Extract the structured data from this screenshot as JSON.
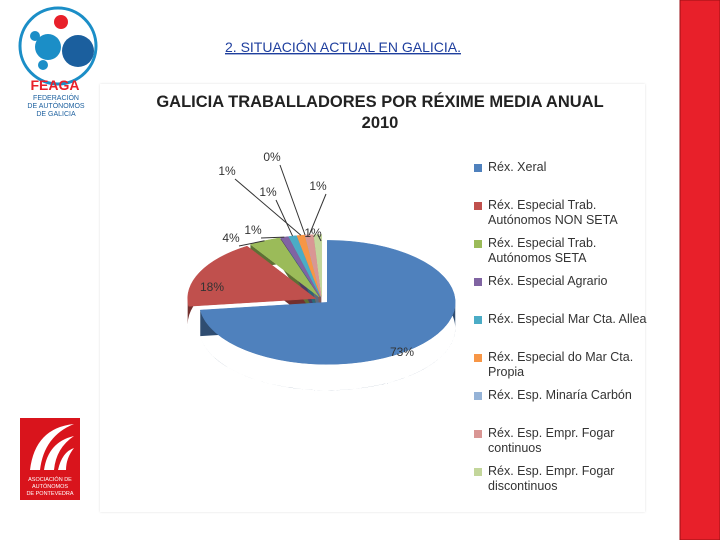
{
  "slide": {
    "heading": "2. SITUACIÓN ACTUAL EN GALICIA.",
    "logo_top": {
      "name": "FEAGA",
      "lines": [
        "FEDERACIÓN",
        "DE AUTÓNOMOS",
        "DE GALICIA"
      ]
    },
    "logo_bottom": {
      "lines": [
        "ASOCIACIÓN DE",
        "AUTÓNOMOS",
        "DE PONTEVEDRA"
      ]
    }
  },
  "chart_data": {
    "type": "pie",
    "title": "GALICIA TRABALLADORES POR RÉXIME MEDIA ANUAL 2010",
    "categories": [
      "Réx. Xeral",
      "Réx. Especial Trab. Autónomos NON SETA",
      "Réx. Especial Trab. Autónomos  SETA",
      "Réx. Especial Agrario",
      "Réx. Especial Mar Cta. Allea",
      "Réx. Especial do Mar Cta. Propia",
      "Réx. Esp. Minaría Carbón",
      "Réx. Esp. Empr. Fogar continuos",
      "Réx. Esp. Empr. Fogar discontinuos"
    ],
    "values": [
      73,
      18,
      4,
      1,
      1,
      1,
      0,
      1,
      1
    ],
    "value_labels": [
      "73%",
      "18%",
      "4%",
      "1%",
      "1%",
      "1%",
      "0%",
      "1%",
      "1%"
    ],
    "colors": [
      "#4f81bd",
      "#c0504d",
      "#9bbb59",
      "#8064a2",
      "#4bacc6",
      "#f79646",
      "#95b3d7",
      "#d99694",
      "#c3d69b"
    ],
    "legend": "right"
  }
}
